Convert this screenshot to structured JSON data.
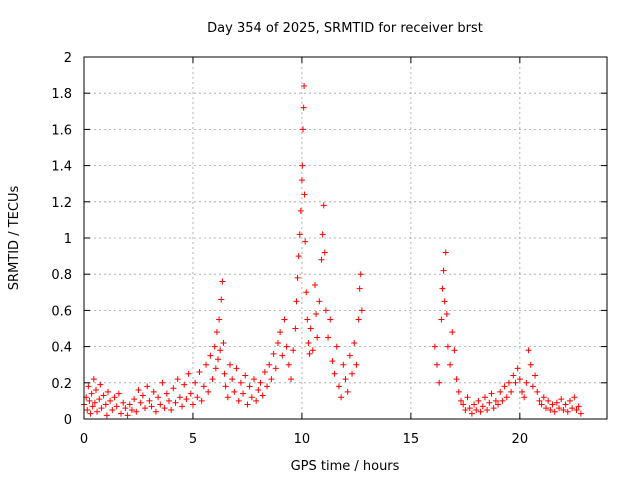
{
  "chart_data": {
    "type": "scatter",
    "title": "Day 354 of 2025, SRMTID for receiver brst",
    "xlabel": "GPS time / hours",
    "ylabel": "SRMTID / TECUs",
    "xlim": [
      0,
      24
    ],
    "ylim": [
      0,
      2
    ],
    "xticks": [
      0,
      5,
      10,
      15,
      20
    ],
    "yticks": [
      0,
      0.2,
      0.4,
      0.6,
      0.8,
      1,
      1.2,
      1.4,
      1.6,
      1.8,
      2
    ],
    "xtick_labels": [
      "0",
      "5",
      "10",
      "15",
      "20"
    ],
    "ytick_labels": [
      "0",
      "0.2",
      "0.4",
      "0.6",
      "0.8",
      "1",
      "1.2",
      "1.4",
      "1.6",
      "1.8",
      "2"
    ],
    "grid": true,
    "marker": "+",
    "color": "#ff0000",
    "points": [
      [
        0.0,
        0.08
      ],
      [
        0.1,
        0.12
      ],
      [
        0.15,
        0.05
      ],
      [
        0.2,
        0.18
      ],
      [
        0.25,
        0.1
      ],
      [
        0.3,
        0.03
      ],
      [
        0.35,
        0.14
      ],
      [
        0.4,
        0.07
      ],
      [
        0.45,
        0.22
      ],
      [
        0.5,
        0.09
      ],
      [
        0.55,
        0.16
      ],
      [
        0.6,
        0.04
      ],
      [
        0.7,
        0.11
      ],
      [
        0.75,
        0.19
      ],
      [
        0.8,
        0.06
      ],
      [
        0.9,
        0.13
      ],
      [
        1.0,
        0.08
      ],
      [
        1.05,
        0.02
      ],
      [
        1.1,
        0.15
      ],
      [
        1.2,
        0.1
      ],
      [
        1.3,
        0.05
      ],
      [
        1.4,
        0.12
      ],
      [
        1.5,
        0.07
      ],
      [
        1.6,
        0.14
      ],
      [
        1.7,
        0.03
      ],
      [
        1.8,
        0.09
      ],
      [
        1.9,
        0.06
      ],
      [
        2.0,
        0.02
      ],
      [
        2.1,
        0.08
      ],
      [
        2.2,
        0.05
      ],
      [
        2.3,
        0.11
      ],
      [
        2.4,
        0.04
      ],
      [
        2.5,
        0.16
      ],
      [
        2.6,
        0.09
      ],
      [
        2.7,
        0.13
      ],
      [
        2.8,
        0.06
      ],
      [
        2.9,
        0.18
      ],
      [
        3.0,
        0.1
      ],
      [
        3.1,
        0.07
      ],
      [
        3.2,
        0.15
      ],
      [
        3.3,
        0.04
      ],
      [
        3.4,
        0.12
      ],
      [
        3.5,
        0.08
      ],
      [
        3.6,
        0.2
      ],
      [
        3.7,
        0.06
      ],
      [
        3.8,
        0.14
      ],
      [
        3.9,
        0.1
      ],
      [
        4.0,
        0.05
      ],
      [
        4.1,
        0.17
      ],
      [
        4.2,
        0.09
      ],
      [
        4.3,
        0.22
      ],
      [
        4.4,
        0.12
      ],
      [
        4.5,
        0.07
      ],
      [
        4.6,
        0.19
      ],
      [
        4.7,
        0.11
      ],
      [
        4.8,
        0.25
      ],
      [
        4.9,
        0.14
      ],
      [
        5.0,
        0.08
      ],
      [
        5.1,
        0.2
      ],
      [
        5.2,
        0.12
      ],
      [
        5.3,
        0.26
      ],
      [
        5.4,
        0.1
      ],
      [
        5.5,
        0.18
      ],
      [
        5.6,
        0.3
      ],
      [
        5.7,
        0.15
      ],
      [
        5.8,
        0.35
      ],
      [
        5.9,
        0.22
      ],
      [
        6.0,
        0.4
      ],
      [
        6.05,
        0.28
      ],
      [
        6.1,
        0.48
      ],
      [
        6.15,
        0.33
      ],
      [
        6.2,
        0.55
      ],
      [
        6.25,
        0.38
      ],
      [
        6.3,
        0.66
      ],
      [
        6.35,
        0.76
      ],
      [
        6.4,
        0.42
      ],
      [
        6.45,
        0.25
      ],
      [
        6.5,
        0.18
      ],
      [
        6.6,
        0.12
      ],
      [
        6.7,
        0.3
      ],
      [
        6.8,
        0.22
      ],
      [
        6.9,
        0.15
      ],
      [
        7.0,
        0.28
      ],
      [
        7.1,
        0.1
      ],
      [
        7.2,
        0.2
      ],
      [
        7.3,
        0.14
      ],
      [
        7.4,
        0.24
      ],
      [
        7.5,
        0.08
      ],
      [
        7.6,
        0.18
      ],
      [
        7.7,
        0.12
      ],
      [
        7.8,
        0.22
      ],
      [
        7.9,
        0.1
      ],
      [
        8.0,
        0.16
      ],
      [
        8.1,
        0.2
      ],
      [
        8.2,
        0.13
      ],
      [
        8.3,
        0.26
      ],
      [
        8.4,
        0.18
      ],
      [
        8.5,
        0.3
      ],
      [
        8.6,
        0.22
      ],
      [
        8.7,
        0.36
      ],
      [
        8.8,
        0.28
      ],
      [
        8.9,
        0.42
      ],
      [
        9.0,
        0.48
      ],
      [
        9.1,
        0.35
      ],
      [
        9.2,
        0.55
      ],
      [
        9.3,
        0.4
      ],
      [
        9.4,
        0.3
      ],
      [
        9.5,
        0.22
      ],
      [
        9.6,
        0.38
      ],
      [
        9.7,
        0.5
      ],
      [
        9.75,
        0.65
      ],
      [
        9.8,
        0.78
      ],
      [
        9.85,
        0.9
      ],
      [
        9.9,
        1.02
      ],
      [
        9.95,
        1.15
      ],
      [
        10.0,
        1.32
      ],
      [
        10.02,
        1.4
      ],
      [
        10.05,
        1.6
      ],
      [
        10.08,
        1.72
      ],
      [
        10.1,
        1.84
      ],
      [
        10.12,
        1.24
      ],
      [
        10.15,
        0.98
      ],
      [
        10.2,
        0.7
      ],
      [
        10.25,
        0.55
      ],
      [
        10.3,
        0.42
      ],
      [
        10.35,
        0.36
      ],
      [
        10.4,
        0.5
      ],
      [
        10.5,
        0.38
      ],
      [
        10.6,
        0.74
      ],
      [
        10.65,
        0.58
      ],
      [
        10.7,
        0.45
      ],
      [
        10.8,
        0.65
      ],
      [
        10.9,
        0.88
      ],
      [
        10.95,
        1.02
      ],
      [
        11.0,
        1.18
      ],
      [
        11.05,
        0.92
      ],
      [
        11.1,
        0.6
      ],
      [
        11.2,
        0.45
      ],
      [
        11.3,
        0.55
      ],
      [
        11.4,
        0.32
      ],
      [
        11.5,
        0.25
      ],
      [
        11.6,
        0.4
      ],
      [
        11.7,
        0.18
      ],
      [
        11.8,
        0.12
      ],
      [
        11.9,
        0.3
      ],
      [
        12.0,
        0.22
      ],
      [
        12.1,
        0.15
      ],
      [
        12.2,
        0.35
      ],
      [
        12.3,
        0.25
      ],
      [
        12.4,
        0.42
      ],
      [
        12.5,
        0.3
      ],
      [
        12.6,
        0.55
      ],
      [
        12.65,
        0.72
      ],
      [
        12.7,
        0.8
      ],
      [
        12.75,
        0.6
      ],
      [
        16.1,
        0.4
      ],
      [
        16.2,
        0.3
      ],
      [
        16.3,
        0.2
      ],
      [
        16.4,
        0.55
      ],
      [
        16.45,
        0.72
      ],
      [
        16.5,
        0.82
      ],
      [
        16.55,
        0.65
      ],
      [
        16.6,
        0.92
      ],
      [
        16.65,
        0.58
      ],
      [
        16.7,
        0.4
      ],
      [
        16.8,
        0.3
      ],
      [
        16.9,
        0.48
      ],
      [
        17.0,
        0.38
      ],
      [
        17.1,
        0.22
      ],
      [
        17.2,
        0.15
      ],
      [
        17.3,
        0.1
      ],
      [
        17.4,
        0.08
      ],
      [
        17.5,
        0.05
      ],
      [
        17.6,
        0.12
      ],
      [
        17.7,
        0.06
      ],
      [
        17.8,
        0.03
      ],
      [
        17.9,
        0.08
      ],
      [
        18.0,
        0.05
      ],
      [
        18.1,
        0.1
      ],
      [
        18.2,
        0.04
      ],
      [
        18.3,
        0.07
      ],
      [
        18.4,
        0.12
      ],
      [
        18.5,
        0.05
      ],
      [
        18.6,
        0.09
      ],
      [
        18.7,
        0.14
      ],
      [
        18.8,
        0.06
      ],
      [
        18.9,
        0.1
      ],
      [
        19.0,
        0.08
      ],
      [
        19.1,
        0.15
      ],
      [
        19.2,
        0.1
      ],
      [
        19.3,
        0.18
      ],
      [
        19.4,
        0.12
      ],
      [
        19.5,
        0.2
      ],
      [
        19.6,
        0.15
      ],
      [
        19.7,
        0.24
      ],
      [
        19.8,
        0.2
      ],
      [
        19.9,
        0.28
      ],
      [
        20.0,
        0.22
      ],
      [
        20.1,
        0.15
      ],
      [
        20.2,
        0.12
      ],
      [
        20.3,
        0.2
      ],
      [
        20.4,
        0.38
      ],
      [
        20.5,
        0.3
      ],
      [
        20.6,
        0.18
      ],
      [
        20.7,
        0.24
      ],
      [
        20.8,
        0.15
      ],
      [
        20.9,
        0.1
      ],
      [
        21.0,
        0.08
      ],
      [
        21.1,
        0.12
      ],
      [
        21.2,
        0.06
      ],
      [
        21.3,
        0.1
      ],
      [
        21.4,
        0.05
      ],
      [
        21.5,
        0.08
      ],
      [
        21.6,
        0.04
      ],
      [
        21.7,
        0.09
      ],
      [
        21.8,
        0.06
      ],
      [
        21.9,
        0.11
      ],
      [
        22.0,
        0.05
      ],
      [
        22.1,
        0.08
      ],
      [
        22.2,
        0.04
      ],
      [
        22.3,
        0.1
      ],
      [
        22.4,
        0.06
      ],
      [
        22.5,
        0.12
      ],
      [
        22.6,
        0.05
      ],
      [
        22.7,
        0.07
      ],
      [
        22.8,
        0.03
      ]
    ]
  }
}
